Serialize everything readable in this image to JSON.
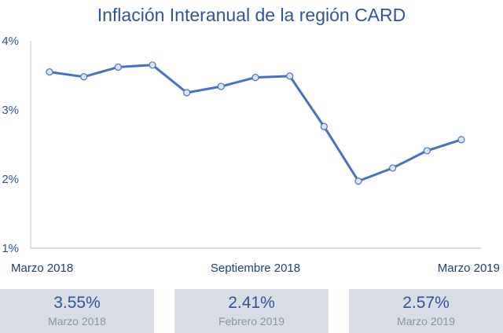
{
  "chart_data": {
    "type": "line",
    "title": "Inflación Interanual de la región CARD",
    "y_ticks": [
      "1%",
      "2%",
      "3%",
      "4%"
    ],
    "ylim": [
      1,
      4
    ],
    "x_tick_labels": [
      "Marzo 2018",
      "Septiembre 2018",
      "Marzo 2019"
    ],
    "x": [
      "Mar 2018",
      "Abr 2018",
      "May 2018",
      "Jun 2018",
      "Jul 2018",
      "Ago 2018",
      "Sep 2018",
      "Oct 2018",
      "Nov 2018",
      "Dic 2018",
      "Ene 2019",
      "Feb 2019",
      "Mar 2019"
    ],
    "series": [
      {
        "values": [
          3.55,
          3.48,
          3.62,
          3.65,
          3.25,
          3.34,
          3.47,
          3.49,
          2.76,
          1.97,
          2.16,
          2.41,
          2.57
        ]
      }
    ],
    "line_color": "#4472c4",
    "marker_fill": "#dbe5f5",
    "grid": false
  },
  "stats": [
    {
      "value": "3.55%",
      "date": "Marzo 2018"
    },
    {
      "value": "2.41%",
      "date": "Febrero 2019"
    },
    {
      "value": "2.57%",
      "date": "Marzo 2019"
    }
  ]
}
